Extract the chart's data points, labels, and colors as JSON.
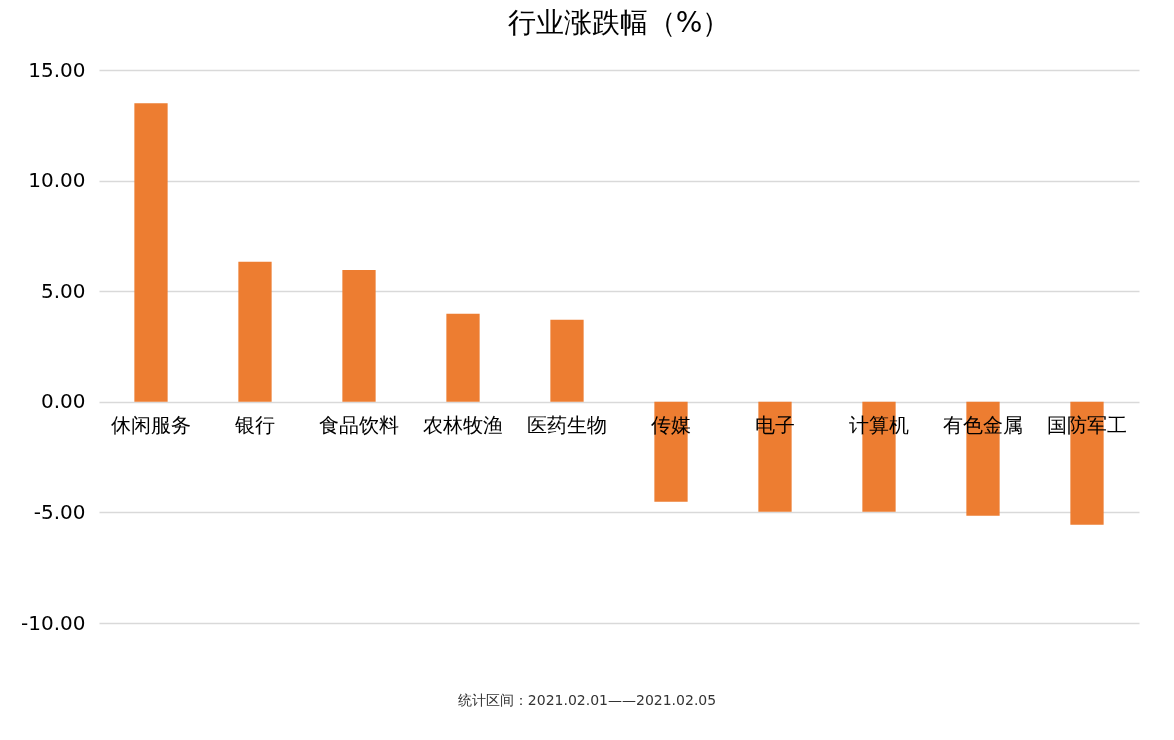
{
  "chart_data": {
    "type": "bar",
    "title": "行业涨跌幅（%）",
    "categories": [
      "休闲服务",
      "银行",
      "食品饮料",
      "农林牧渔",
      "医药生物",
      "传媒",
      "电子",
      "计算机",
      "有色金属",
      "国防军工"
    ],
    "values": [
      13.5,
      6.33,
      5.96,
      3.98,
      3.71,
      -4.52,
      -4.97,
      -4.97,
      -5.15,
      -5.56
    ],
    "color": "#ed7d31",
    "ylim": [
      -10,
      15
    ],
    "yticks": [
      {
        "value": -10,
        "label": "-10.00"
      },
      {
        "value": -5,
        "label": "-5.00"
      },
      {
        "value": 0,
        "label": "0.00"
      },
      {
        "value": 5,
        "label": "5.00"
      },
      {
        "value": 10,
        "label": "10.00"
      },
      {
        "value": 15,
        "label": "15.00"
      }
    ],
    "grid": "y",
    "annotations": [
      "统计区间：2021.02.01——2021.02.05"
    ]
  }
}
